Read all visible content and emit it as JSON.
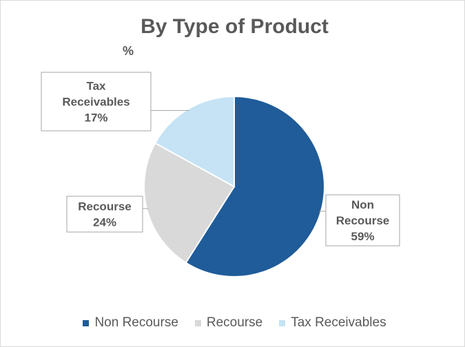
{
  "chart_data": {
    "type": "pie",
    "title": "By Type of Product",
    "subtitle": "%",
    "categories": [
      "Non Recourse",
      "Recourse",
      "Tax Receivables"
    ],
    "values": [
      59,
      24,
      17
    ],
    "value_labels": [
      "59%",
      "24%",
      "17%"
    ],
    "label_lines": [
      [
        "Non",
        "Recourse"
      ],
      [
        "Recourse"
      ],
      [
        "Tax",
        "Receivables"
      ]
    ],
    "colors": [
      "#1f5c99",
      "#d9d9d9",
      "#c5e3f5"
    ],
    "legend_position": "bottom",
    "start_angle_deg": 0,
    "direction": "clockwise"
  }
}
